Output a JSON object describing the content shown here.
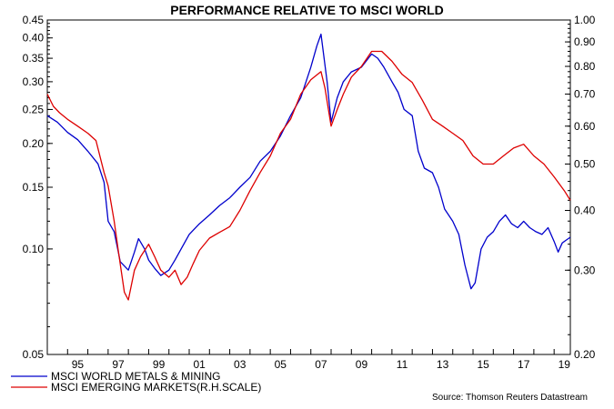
{
  "chart_data": {
    "type": "line",
    "title": "PERFORMANCE RELATIVE TO MSCI WORLD",
    "source": "Source: Thomson Reuters Datastream",
    "x_range": [
      1994.0,
      2019.8
    ],
    "x_tick_labels": [
      "95",
      "97",
      "99",
      "01",
      "03",
      "05",
      "07",
      "09",
      "11",
      "13",
      "15",
      "17",
      "19"
    ],
    "left_axis": {
      "scale": "log",
      "ylim": [
        0.05,
        0.45
      ],
      "tick_labels": [
        "0.45",
        "0.40",
        "0.35",
        "0.30",
        "0.25",
        "0.20",
        "0.15",
        "0.10",
        "0.05"
      ],
      "tick_values": [
        0.45,
        0.4,
        0.35,
        0.3,
        0.25,
        0.2,
        0.15,
        0.1,
        0.05
      ]
    },
    "right_axis": {
      "scale": "log",
      "ylim": [
        0.2,
        1.0
      ],
      "tick_labels": [
        "1.00",
        "0.90",
        "0.80",
        "0.70",
        "0.60",
        "0.50",
        "0.40",
        "0.30",
        "0.20"
      ],
      "tick_values": [
        1.0,
        0.9,
        0.8,
        0.7,
        0.6,
        0.5,
        0.4,
        0.3,
        0.2
      ]
    },
    "grid": false,
    "legend_position": "bottom-left",
    "series": [
      {
        "name": "MSCI WORLD METALS & MINING",
        "axis": "left",
        "color": "#0000cc",
        "points": [
          [
            1994.0,
            0.24
          ],
          [
            1994.5,
            0.23
          ],
          [
            1995.0,
            0.215
          ],
          [
            1995.5,
            0.205
          ],
          [
            1996.0,
            0.19
          ],
          [
            1996.5,
            0.175
          ],
          [
            1996.8,
            0.155
          ],
          [
            1997.0,
            0.12
          ],
          [
            1997.3,
            0.112
          ],
          [
            1997.6,
            0.092
          ],
          [
            1998.0,
            0.087
          ],
          [
            1998.3,
            0.098
          ],
          [
            1998.5,
            0.107
          ],
          [
            1998.8,
            0.1
          ],
          [
            1999.0,
            0.093
          ],
          [
            1999.3,
            0.088
          ],
          [
            1999.6,
            0.084
          ],
          [
            2000.0,
            0.087
          ],
          [
            2000.3,
            0.093
          ],
          [
            2000.6,
            0.1
          ],
          [
            2001.0,
            0.11
          ],
          [
            2001.5,
            0.118
          ],
          [
            2002.0,
            0.125
          ],
          [
            2002.5,
            0.133
          ],
          [
            2003.0,
            0.14
          ],
          [
            2003.5,
            0.15
          ],
          [
            2004.0,
            0.16
          ],
          [
            2004.5,
            0.178
          ],
          [
            2005.0,
            0.19
          ],
          [
            2005.5,
            0.21
          ],
          [
            2006.0,
            0.24
          ],
          [
            2006.5,
            0.27
          ],
          [
            2007.0,
            0.33
          ],
          [
            2007.3,
            0.38
          ],
          [
            2007.5,
            0.41
          ],
          [
            2007.8,
            0.3
          ],
          [
            2008.0,
            0.23
          ],
          [
            2008.3,
            0.27
          ],
          [
            2008.6,
            0.3
          ],
          [
            2009.0,
            0.32
          ],
          [
            2009.5,
            0.33
          ],
          [
            2010.0,
            0.36
          ],
          [
            2010.3,
            0.35
          ],
          [
            2010.6,
            0.33
          ],
          [
            2011.0,
            0.3
          ],
          [
            2011.3,
            0.28
          ],
          [
            2011.6,
            0.25
          ],
          [
            2012.0,
            0.24
          ],
          [
            2012.3,
            0.19
          ],
          [
            2012.6,
            0.17
          ],
          [
            2013.0,
            0.165
          ],
          [
            2013.3,
            0.15
          ],
          [
            2013.6,
            0.13
          ],
          [
            2014.0,
            0.12
          ],
          [
            2014.3,
            0.11
          ],
          [
            2014.6,
            0.09
          ],
          [
            2014.9,
            0.077
          ],
          [
            2015.1,
            0.08
          ],
          [
            2015.4,
            0.1
          ],
          [
            2015.7,
            0.108
          ],
          [
            2016.0,
            0.112
          ],
          [
            2016.3,
            0.12
          ],
          [
            2016.6,
            0.125
          ],
          [
            2016.9,
            0.118
          ],
          [
            2017.2,
            0.115
          ],
          [
            2017.5,
            0.12
          ],
          [
            2017.8,
            0.115
          ],
          [
            2018.1,
            0.112
          ],
          [
            2018.4,
            0.11
          ],
          [
            2018.7,
            0.115
          ],
          [
            2019.0,
            0.105
          ],
          [
            2019.2,
            0.098
          ],
          [
            2019.4,
            0.104
          ],
          [
            2019.6,
            0.106
          ],
          [
            2019.8,
            0.108
          ]
        ]
      },
      {
        "name": "MSCI EMERGING MARKETS(R.H.SCALE)",
        "axis": "right",
        "color": "#dd0000",
        "points": [
          [
            1994.0,
            0.7
          ],
          [
            1994.3,
            0.66
          ],
          [
            1994.6,
            0.64
          ],
          [
            1995.0,
            0.62
          ],
          [
            1995.5,
            0.6
          ],
          [
            1996.0,
            0.58
          ],
          [
            1996.4,
            0.56
          ],
          [
            1996.8,
            0.48
          ],
          [
            1997.0,
            0.45
          ],
          [
            1997.3,
            0.38
          ],
          [
            1997.5,
            0.33
          ],
          [
            1997.8,
            0.27
          ],
          [
            1998.0,
            0.26
          ],
          [
            1998.3,
            0.3
          ],
          [
            1998.6,
            0.32
          ],
          [
            1999.0,
            0.34
          ],
          [
            1999.3,
            0.32
          ],
          [
            1999.6,
            0.3
          ],
          [
            2000.0,
            0.29
          ],
          [
            2000.3,
            0.3
          ],
          [
            2000.6,
            0.28
          ],
          [
            2000.9,
            0.29
          ],
          [
            2001.2,
            0.31
          ],
          [
            2001.5,
            0.33
          ],
          [
            2002.0,
            0.35
          ],
          [
            2002.5,
            0.36
          ],
          [
            2003.0,
            0.37
          ],
          [
            2003.5,
            0.4
          ],
          [
            2004.0,
            0.44
          ],
          [
            2004.5,
            0.48
          ],
          [
            2005.0,
            0.52
          ],
          [
            2005.5,
            0.58
          ],
          [
            2006.0,
            0.62
          ],
          [
            2006.5,
            0.7
          ],
          [
            2007.0,
            0.75
          ],
          [
            2007.5,
            0.78
          ],
          [
            2007.7,
            0.72
          ],
          [
            2008.0,
            0.6
          ],
          [
            2008.3,
            0.65
          ],
          [
            2008.6,
            0.7
          ],
          [
            2009.0,
            0.76
          ],
          [
            2009.5,
            0.8
          ],
          [
            2010.0,
            0.86
          ],
          [
            2010.5,
            0.86
          ],
          [
            2011.0,
            0.82
          ],
          [
            2011.5,
            0.77
          ],
          [
            2012.0,
            0.74
          ],
          [
            2012.5,
            0.68
          ],
          [
            2013.0,
            0.62
          ],
          [
            2013.5,
            0.6
          ],
          [
            2014.0,
            0.58
          ],
          [
            2014.5,
            0.56
          ],
          [
            2015.0,
            0.52
          ],
          [
            2015.5,
            0.5
          ],
          [
            2016.0,
            0.5
          ],
          [
            2016.5,
            0.52
          ],
          [
            2017.0,
            0.54
          ],
          [
            2017.5,
            0.55
          ],
          [
            2018.0,
            0.52
          ],
          [
            2018.5,
            0.5
          ],
          [
            2019.0,
            0.47
          ],
          [
            2019.5,
            0.44
          ],
          [
            2019.8,
            0.42
          ]
        ]
      }
    ]
  }
}
